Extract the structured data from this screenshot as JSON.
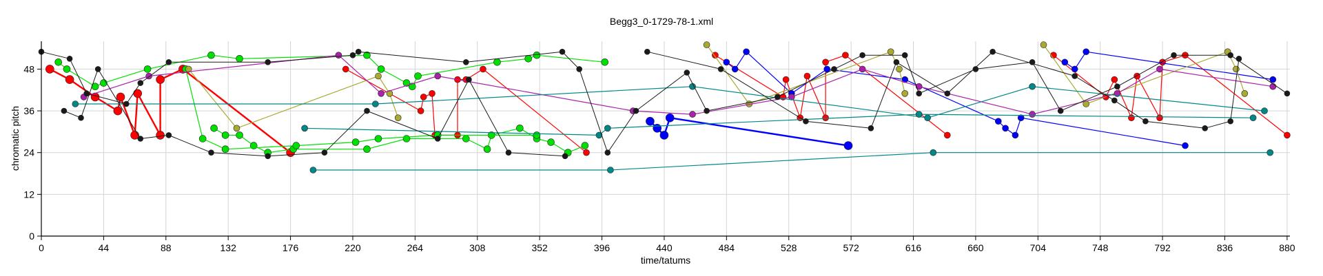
{
  "chart_data": {
    "type": "scatter",
    "title": "Begg3_0-1729-78-1.xml",
    "xlabel": "time/tatums",
    "ylabel": "chromatic pitch",
    "xlim": [
      0,
      882
    ],
    "ylim": [
      0,
      56
    ],
    "xticks": [
      0,
      44,
      88,
      132,
      176,
      220,
      264,
      308,
      352,
      396,
      440,
      484,
      528,
      572,
      616,
      660,
      704,
      748,
      792,
      836,
      880
    ],
    "yticks": [
      0,
      12,
      24,
      36,
      48
    ],
    "grid": true,
    "series": [
      {
        "color": "#ff0000",
        "width": 2.4,
        "r": 6,
        "points": [
          [
            6,
            48
          ],
          [
            20,
            45
          ],
          [
            38,
            40
          ],
          [
            54,
            36
          ],
          [
            56,
            40
          ],
          [
            66,
            29
          ],
          [
            68,
            41
          ],
          [
            84,
            29
          ],
          [
            84,
            45
          ],
          [
            100,
            48
          ],
          [
            176,
            24
          ]
        ]
      },
      {
        "color": "#ff0000",
        "width": 1.2,
        "r": 4.5,
        "points": [
          [
            215,
            48
          ],
          [
            268,
            36
          ],
          [
            270,
            40
          ],
          [
            276,
            41
          ],
          [
            278,
            29
          ],
          [
            294,
            29
          ],
          [
            294,
            45
          ],
          [
            300,
            45
          ],
          [
            312,
            48
          ],
          [
            385,
            24
          ]
        ]
      },
      {
        "color": "#ff0000",
        "width": 1.2,
        "r": 4.5,
        "points": [
          [
            476,
            52
          ],
          [
            524,
            40
          ],
          [
            526,
            45
          ],
          [
            536,
            34
          ],
          [
            541,
            46
          ],
          [
            554,
            34
          ],
          [
            554,
            50
          ],
          [
            568,
            52
          ],
          [
            640,
            29
          ]
        ]
      },
      {
        "color": "#ff0000",
        "width": 1.2,
        "r": 4.5,
        "points": [
          [
            715,
            52
          ],
          [
            752,
            40
          ],
          [
            758,
            45
          ],
          [
            770,
            34
          ],
          [
            774,
            46
          ],
          [
            790,
            34
          ],
          [
            792,
            50
          ],
          [
            808,
            52
          ],
          [
            880,
            29
          ]
        ]
      },
      {
        "color": "#0000ff",
        "width": 2.4,
        "r": 6,
        "points": [
          [
            430,
            33
          ],
          [
            435,
            31
          ],
          [
            440,
            29
          ],
          [
            444,
            34
          ],
          [
            570,
            26
          ]
        ]
      },
      {
        "color": "#0000ff",
        "width": 1.2,
        "r": 4.5,
        "points": [
          [
            484,
            50
          ],
          [
            490,
            48
          ],
          [
            498,
            53
          ],
          [
            530,
            41
          ],
          [
            555,
            48
          ],
          [
            610,
            45
          ],
          [
            676,
            33
          ],
          [
            681,
            31
          ],
          [
            688,
            29
          ],
          [
            692,
            34
          ],
          [
            808,
            26
          ]
        ]
      },
      {
        "color": "#0000ff",
        "width": 1.2,
        "r": 4.5,
        "points": [
          [
            723,
            50
          ],
          [
            730,
            48
          ],
          [
            738,
            53
          ],
          [
            870,
            45
          ]
        ]
      },
      {
        "color": "#00e000",
        "width": 1.2,
        "r": 5,
        "points": [
          [
            12,
            50
          ],
          [
            18,
            48
          ],
          [
            38,
            43
          ],
          [
            44,
            44
          ],
          [
            75,
            48
          ],
          [
            120,
            52
          ],
          [
            140,
            51
          ],
          [
            230,
            52
          ],
          [
            240,
            48
          ],
          [
            258,
            44
          ],
          [
            262,
            43
          ],
          [
            266,
            46
          ],
          [
            322,
            50
          ],
          [
            344,
            51
          ],
          [
            350,
            52
          ],
          [
            398,
            50
          ]
        ]
      },
      {
        "color": "#00e000",
        "width": 1.2,
        "r": 5,
        "points": [
          [
            122,
            31
          ],
          [
            130,
            29
          ],
          [
            140,
            29
          ],
          [
            150,
            26
          ],
          [
            160,
            24
          ],
          [
            178,
            25
          ],
          [
            230,
            25
          ],
          [
            258,
            28
          ],
          [
            300,
            28
          ],
          [
            315,
            25
          ],
          [
            318,
            29
          ],
          [
            338,
            31
          ],
          [
            350,
            28
          ],
          [
            360,
            27
          ],
          [
            372,
            24
          ],
          [
            384,
            26
          ]
        ]
      },
      {
        "color": "#00e000",
        "width": 1.2,
        "r": 5,
        "points": [
          [
            102,
            48
          ],
          [
            114,
            28
          ],
          [
            130,
            25
          ],
          [
            180,
            26
          ],
          [
            222,
            27
          ],
          [
            238,
            28
          ],
          [
            280,
            29
          ],
          [
            350,
            29
          ]
        ]
      },
      {
        "color": "#aaaa33",
        "width": 1.2,
        "r": 4.5,
        "points": [
          [
            104,
            48
          ],
          [
            138,
            31
          ],
          [
            238,
            46
          ],
          [
            246,
            41
          ],
          [
            252,
            34
          ]
        ]
      },
      {
        "color": "#aaaa33",
        "width": 1.2,
        "r": 4.5,
        "points": [
          [
            470,
            55
          ],
          [
            500,
            38
          ],
          [
            600,
            53
          ],
          [
            606,
            48
          ],
          [
            610,
            41
          ]
        ]
      },
      {
        "color": "#aaaa33",
        "width": 1.2,
        "r": 4.5,
        "points": [
          [
            708,
            55
          ],
          [
            738,
            38
          ],
          [
            838,
            53
          ],
          [
            844,
            48
          ],
          [
            850,
            41
          ]
        ]
      },
      {
        "color": "#aa22aa",
        "width": 1.2,
        "r": 4.5,
        "points": [
          [
            30,
            40
          ],
          [
            76,
            46
          ],
          [
            210,
            52
          ],
          [
            240,
            41
          ],
          [
            280,
            46
          ],
          [
            418,
            36
          ],
          [
            460,
            35
          ],
          [
            530,
            40
          ],
          [
            580,
            48
          ],
          [
            620,
            43
          ],
          [
            700,
            35
          ],
          [
            760,
            41
          ],
          [
            790,
            48
          ],
          [
            870,
            43
          ]
        ]
      },
      {
        "color": "#008888",
        "width": 1.2,
        "r": 4.5,
        "points": [
          [
            24,
            38
          ],
          [
            236,
            38
          ],
          [
            460,
            43
          ],
          [
            626,
            34
          ],
          [
            700,
            43
          ],
          [
            864,
            36
          ]
        ]
      },
      {
        "color": "#008888",
        "width": 1.2,
        "r": 4.5,
        "points": [
          [
            192,
            19
          ],
          [
            402,
            19
          ],
          [
            630,
            24
          ],
          [
            868,
            24
          ]
        ]
      },
      {
        "color": "#008888",
        "width": 1.2,
        "r": 4.5,
        "points": [
          [
            186,
            31
          ],
          [
            394,
            29
          ],
          [
            400,
            31
          ],
          [
            620,
            35
          ],
          [
            856,
            34
          ]
        ]
      },
      {
        "color": "#1a1a1a",
        "width": 1.0,
        "r": 4,
        "points": [
          [
            0,
            53
          ],
          [
            20,
            51
          ],
          [
            32,
            41
          ],
          [
            60,
            38
          ],
          [
            70,
            44
          ],
          [
            90,
            50
          ],
          [
            160,
            50
          ],
          [
            220,
            52
          ],
          [
            224,
            53
          ],
          [
            300,
            50
          ],
          [
            368,
            53
          ],
          [
            380,
            48
          ],
          [
            400,
            24
          ],
          [
            420,
            36
          ],
          [
            456,
            47
          ],
          [
            470,
            36
          ],
          [
            520,
            40
          ],
          [
            560,
            48
          ],
          [
            580,
            52
          ],
          [
            610,
            52
          ],
          [
            620,
            41
          ],
          [
            660,
            48
          ],
          [
            700,
            50
          ],
          [
            720,
            36
          ],
          [
            760,
            43
          ],
          [
            800,
            52
          ],
          [
            840,
            52
          ],
          [
            880,
            41
          ]
        ]
      },
      {
        "color": "#1a1a1a",
        "width": 1.0,
        "r": 4,
        "points": [
          [
            16,
            36
          ],
          [
            28,
            34
          ],
          [
            40,
            48
          ],
          [
            70,
            28
          ],
          [
            90,
            29
          ],
          [
            120,
            24
          ],
          [
            160,
            23
          ],
          [
            200,
            24
          ],
          [
            230,
            36
          ],
          [
            280,
            28
          ],
          [
            302,
            45
          ],
          [
            330,
            24
          ],
          [
            370,
            23
          ]
        ]
      },
      {
        "color": "#1a1a1a",
        "width": 1.0,
        "r": 4,
        "points": [
          [
            428,
            53
          ],
          [
            480,
            48
          ],
          [
            540,
            33
          ],
          [
            586,
            31
          ],
          [
            604,
            50
          ],
          [
            640,
            41
          ],
          [
            672,
            53
          ],
          [
            730,
            46
          ],
          [
            758,
            39
          ],
          [
            780,
            33
          ],
          [
            822,
            31
          ],
          [
            840,
            33
          ],
          [
            846,
            51
          ]
        ]
      }
    ]
  }
}
